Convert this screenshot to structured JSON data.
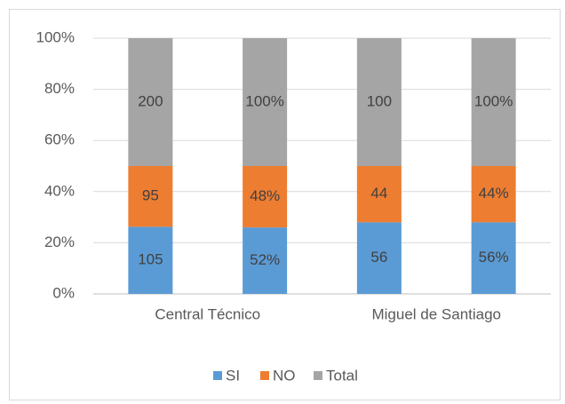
{
  "chart_data": {
    "type": "bar100",
    "stacked": true,
    "legend": "bottom",
    "grid": true,
    "categories": [
      "Central Técnico",
      null,
      "Miguel de Santiago",
      null
    ],
    "series": [
      {
        "name": "SI",
        "color": "#5b9bd5",
        "values": [
          105,
          52,
          56,
          56
        ],
        "value_labels": [
          "105",
          "52%",
          "56",
          "56%"
        ]
      },
      {
        "name": "NO",
        "color": "#ed7d31",
        "values": [
          95,
          48,
          44,
          44
        ],
        "value_labels": [
          "95",
          "48%",
          "44",
          "44%"
        ]
      },
      {
        "name": "Total",
        "color": "#a5a5a5",
        "values": [
          200,
          100,
          100,
          100
        ],
        "value_labels": [
          "200",
          "100%",
          "100",
          "100%"
        ]
      }
    ],
    "ylim": [
      0,
      100
    ],
    "yticks": [
      {
        "value": 0,
        "label": "0%"
      },
      {
        "value": 20,
        "label": "20%"
      },
      {
        "value": 40,
        "label": "40%"
      },
      {
        "value": 60,
        "label": "60%"
      },
      {
        "value": 80,
        "label": "80%"
      },
      {
        "value": 100,
        "label": "100%"
      }
    ]
  }
}
